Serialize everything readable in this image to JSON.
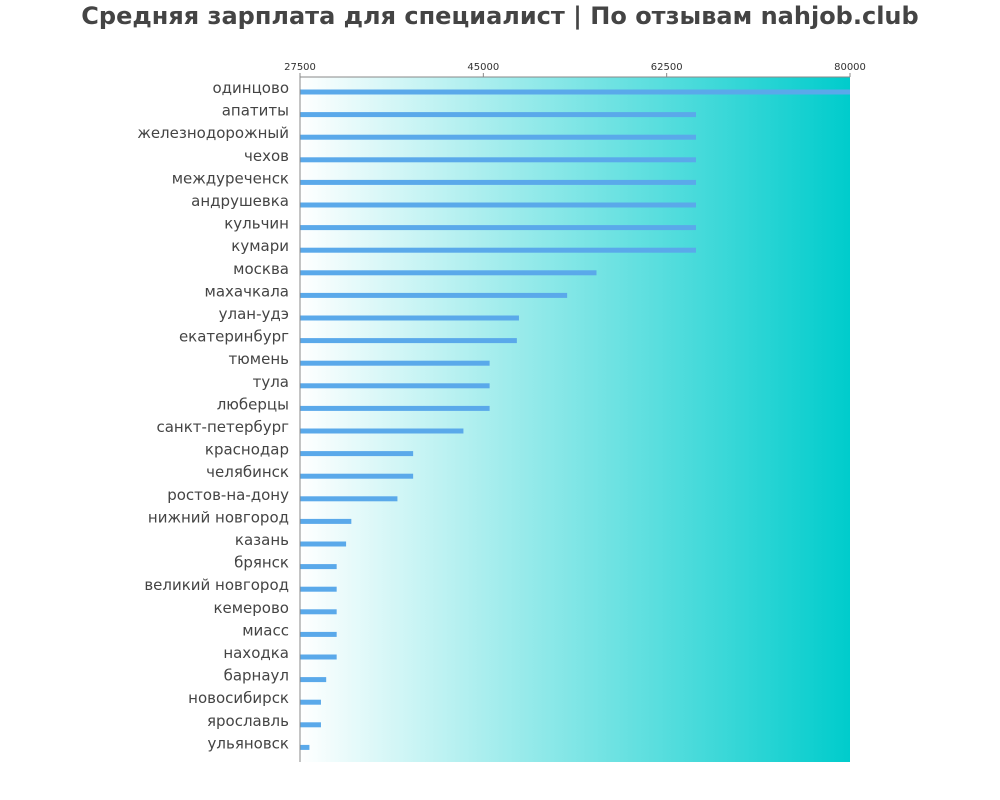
{
  "chart_data": {
    "type": "bar",
    "orientation": "horizontal",
    "title": "Средняя зарплата для специалист | По отзывам nahjob.club",
    "xlabel": "",
    "ylabel": "",
    "xlim": [
      27500,
      80000
    ],
    "x_ticks": [
      "27500",
      "45000",
      "62500",
      "80000"
    ],
    "tick_position": "top",
    "grid": false,
    "legend": "none",
    "categories": [
      "одинцово",
      "апатиты",
      "железнодорожный",
      "чехов",
      "междуреченск",
      "андрушевка",
      "кульчин",
      "кумари",
      "москва",
      "махачкала",
      "улан-удэ",
      "екатеринбург",
      "тюмень",
      "тула",
      "люберцы",
      "санкт-петербург",
      "краснодар",
      "челябинск",
      "ростов-на-дону",
      "нижний новгород",
      "казань",
      "брянск",
      "великий новгород",
      "кемерово",
      "миасс",
      "находка",
      "барнаул",
      "новосибирск",
      "ярославль",
      "ульяновск"
    ],
    "values": [
      80000,
      65300,
      65300,
      65300,
      65300,
      65300,
      65300,
      65300,
      55800,
      53000,
      48400,
      48200,
      45600,
      45600,
      45600,
      43100,
      38300,
      38300,
      36800,
      32400,
      31900,
      31000,
      31000,
      31000,
      31000,
      31000,
      30000,
      29500,
      29500,
      28400
    ],
    "colors": {
      "bar": "#5aa9ea",
      "gradient_start": "#ffffff",
      "gradient_end": "#00cccc",
      "axis": "#888888",
      "title": "#444444",
      "label": "#444444"
    }
  }
}
